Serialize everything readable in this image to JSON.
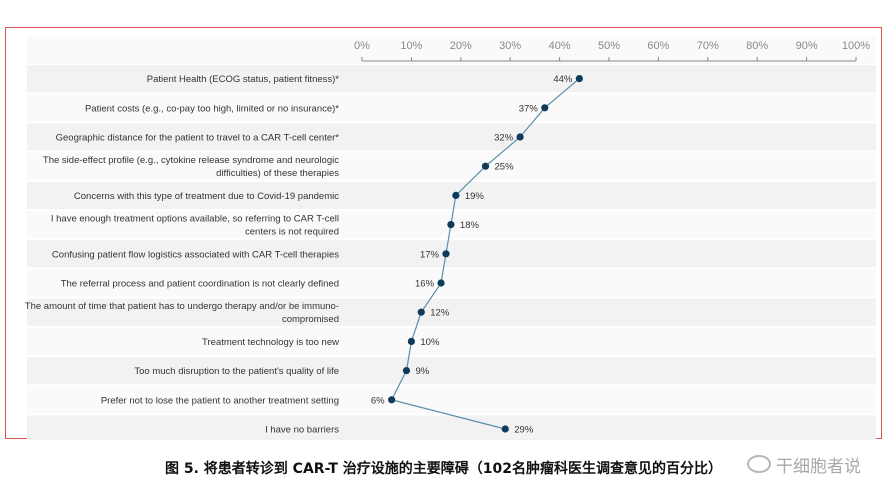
{
  "chart_data": {
    "type": "line",
    "orientation": "horizontal",
    "title": "",
    "xlabel": "",
    "ylabel": "",
    "xlim": [
      0,
      100
    ],
    "x_ticks": [
      "0%",
      "10%",
      "20%",
      "30%",
      "40%",
      "50%",
      "60%",
      "70%",
      "80%",
      "90%",
      "100%"
    ],
    "grid": false,
    "legend": "none",
    "categories": [
      [
        "Patient Health (ECOG status, patient fitness)*"
      ],
      [
        "Patient costs (e.g., co-pay too high, limited or no insurance)*"
      ],
      [
        "Geographic distance for the patient to travel to a CAR T-cell center*"
      ],
      [
        "The side-effect profile (e.g., cytokine release syndrome and neurologic",
        "difficulties) of these therapies"
      ],
      [
        "Concerns with this type of treatment due to Covid-19  pandemic"
      ],
      [
        "I have  enough treatment options available,  so referring to CAR T-cell",
        "centers is not required"
      ],
      [
        "Confusing patient flow logistics associated with CAR T-cell therapies"
      ],
      [
        "The referral  process and patient coordination is not clearly defined"
      ],
      [
        "The amount of time that patient has to undergo  therapy and/or be immuno-",
        "compromised"
      ],
      [
        "Treatment technology is too new"
      ],
      [
        "Too much disruption to the patient's quality of life"
      ],
      [
        "Prefer not to lose the patient to another treatment setting"
      ],
      [
        "I have  no barriers"
      ]
    ],
    "values": [
      44,
      37,
      32,
      25,
      19,
      18,
      17,
      16,
      12,
      10,
      9,
      6,
      29
    ],
    "value_labels": [
      "44%",
      "37%",
      "32%",
      "25%",
      "19%",
      "18%",
      "17%",
      "16%",
      "12%",
      "10%",
      "9%",
      "6%",
      "29%"
    ],
    "label_side": [
      "left",
      "left",
      "left",
      "right",
      "right",
      "right",
      "left",
      "left",
      "right",
      "right",
      "right",
      "left",
      "right"
    ],
    "colors": {
      "line": "#5b8fa8",
      "marker": "#0e3a5c",
      "band_a": "#f2f2f2",
      "band_b": "#fafafa",
      "axis": "#888888"
    }
  },
  "caption": "图 5. 将患者转诊到 CAR-T 治疗设施的主要障碍（102名肿瘤科医生调查意见的百分比）",
  "watermark": "干细胞者说"
}
